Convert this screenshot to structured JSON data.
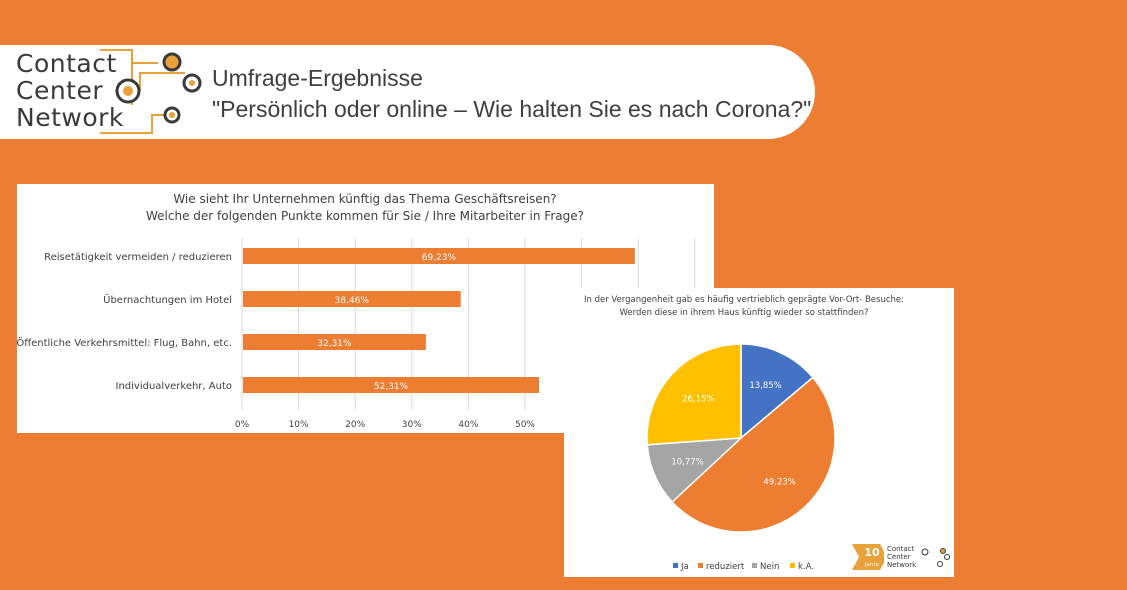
{
  "header": {
    "logo_lines": [
      "Contact",
      "Center",
      "Network"
    ],
    "title_line1": "Umfrage-Ergebnisse",
    "title_line2": "\"Persönlich oder online – Wie halten Sie es nach Corona?\""
  },
  "colors": {
    "background": "#ec7d33",
    "bar": "#ed7d31",
    "pie_ja": "#4472c4",
    "pie_reduziert": "#ed7d31",
    "pie_nein": "#a5a5a5",
    "pie_ka": "#ffc000",
    "logo_accent": "#e9a13b"
  },
  "chart_data": [
    {
      "type": "bar",
      "orientation": "horizontal",
      "title": "Wie sieht Ihr Unternehmen künftig das Thema Geschäftsreisen?",
      "subtitle": "Welche der folgenden Punkte kommen für Sie / Ihre Mitarbeiter in Frage?",
      "categories": [
        "Reisetätigkeit vermeiden / reduzieren",
        "Übernachtungen im Hotel",
        "Öffentliche Verkehrsmittel: Flug, Bahn, etc.",
        "Individualverkehr, Auto"
      ],
      "values": [
        69.23,
        38.46,
        32.31,
        52.31
      ],
      "value_labels": [
        "69,23%",
        "38,46%",
        "32,31%",
        "52,31%"
      ],
      "x_ticks": [
        "0%",
        "10%",
        "20%",
        "30%",
        "40%",
        "50%"
      ],
      "xlim": [
        0,
        80
      ],
      "grid": true
    },
    {
      "type": "pie",
      "title": "In der Vergangenheit gab es häufig vertrieblich geprägte Vor-Ort- Besuche:",
      "subtitle": "Werden diese in ihrem Haus künftig wieder so stattfinden?",
      "labels": [
        "Ja",
        "reduziert",
        "Nein",
        "k.A."
      ],
      "values": [
        13.85,
        49.23,
        10.77,
        26.15
      ],
      "value_labels": [
        "13,85%",
        "49,23%",
        "10,77%",
        "26,15%"
      ],
      "legend_position": "bottom"
    }
  ],
  "badge": {
    "number": "10",
    "word": "Jahre",
    "logo_lines": [
      "Contact",
      "Center",
      "Network"
    ]
  }
}
